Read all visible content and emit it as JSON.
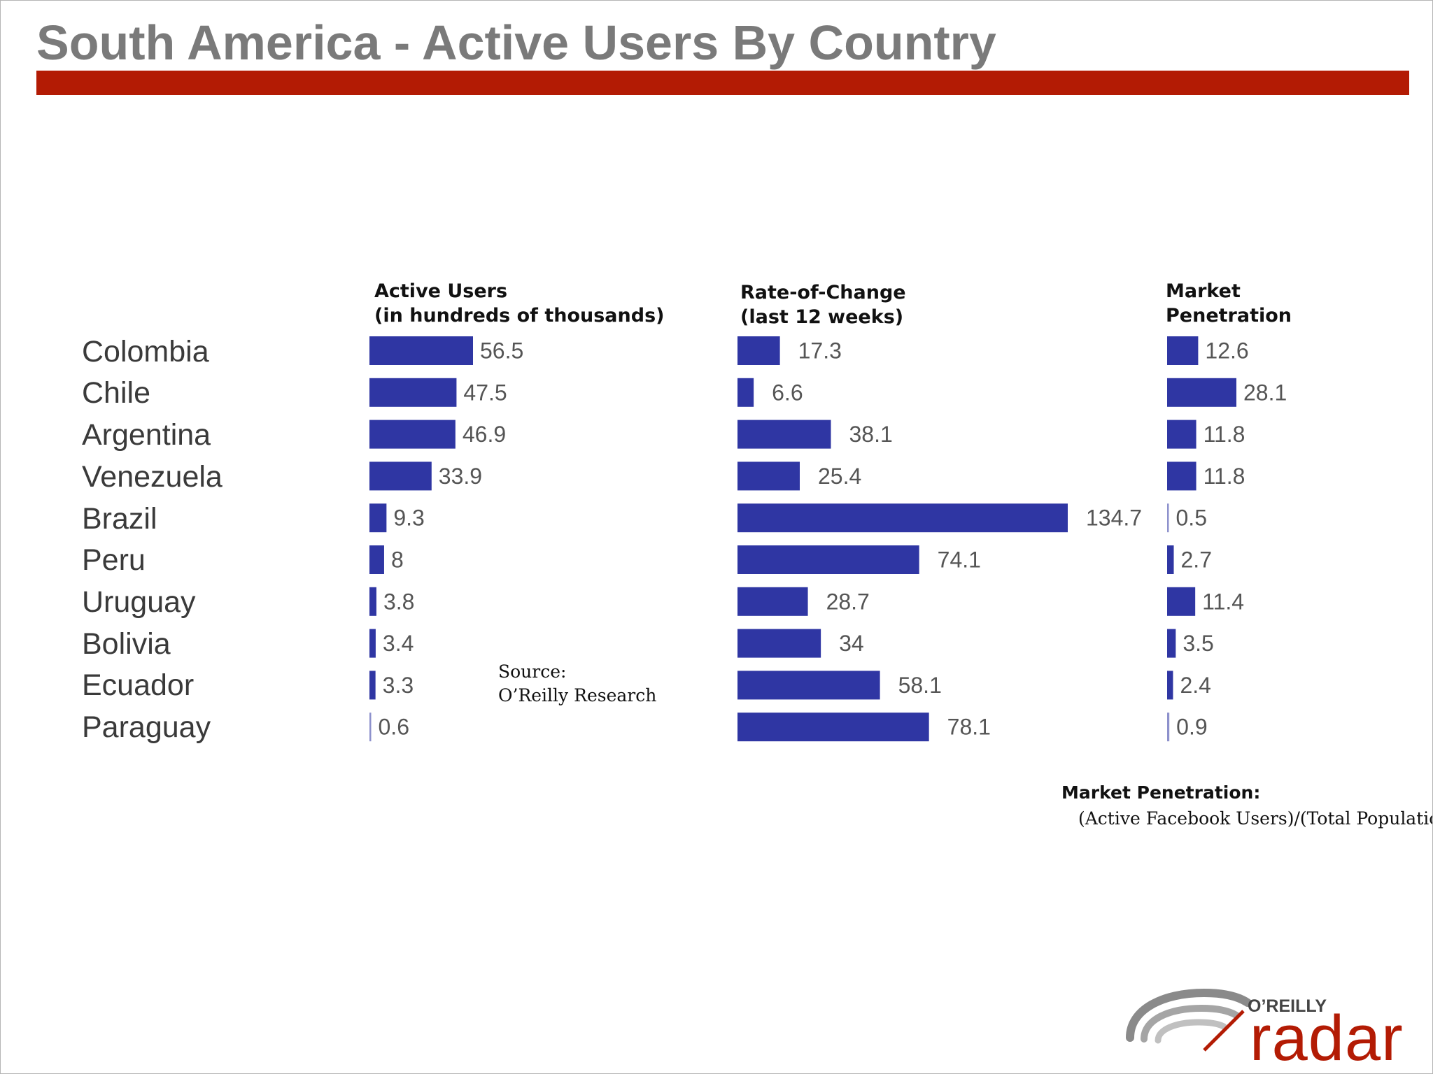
{
  "title": "South America - Active Users By Country",
  "colors": {
    "bar": "#2f36a3",
    "title_bar": "#b31b04",
    "title_text": "#7a7a7a"
  },
  "chart_data": {
    "type": "bar",
    "orientation": "horizontal",
    "categories": [
      "Colombia",
      "Chile",
      "Argentina",
      "Venezuela",
      "Brazil",
      "Peru",
      "Uruguay",
      "Bolivia",
      "Ecuador",
      "Paraguay"
    ],
    "series": [
      {
        "name": "Active Users (in hundreds of thousands)",
        "heading_line1": "Active Users",
        "heading_line2": "(in hundreds of thousands)",
        "values": [
          56.5,
          47.5,
          46.9,
          33.9,
          9.3,
          8,
          3.8,
          3.4,
          3.3,
          0.6
        ],
        "labels": [
          "56.5",
          "47.5",
          "46.9",
          "33.9",
          "9.3",
          "8",
          "3.8",
          "3.4",
          "3.3",
          "0.6"
        ]
      },
      {
        "name": "Rate-of-Change (last 12 weeks)",
        "heading_line1": "Rate-of-Change",
        "heading_line2": "(last 12 weeks)",
        "values": [
          17.3,
          6.6,
          38.1,
          25.4,
          134.7,
          74.1,
          28.7,
          34,
          58.1,
          78.1
        ],
        "labels": [
          "17.3",
          "6.6",
          "38.1",
          "25.4",
          "134.7",
          "74.1",
          "28.7",
          "34",
          "58.1",
          "78.1"
        ]
      },
      {
        "name": "Market Penetration",
        "heading_line1": "Market",
        "heading_line2": "Penetration",
        "values": [
          12.6,
          28.1,
          11.8,
          11.8,
          0.5,
          2.7,
          11.4,
          3.5,
          2.4,
          0.9
        ],
        "labels": [
          "12.6",
          "28.1",
          "11.8",
          "11.8",
          "0.5",
          "2.7",
          "11.4",
          "3.5",
          "2.4",
          "0.9"
        ]
      }
    ]
  },
  "source": {
    "line1": "Source:",
    "line2": "O’Reilly Research"
  },
  "note": {
    "heading": "Market Penetration:",
    "body": "(Active Facebook Users)/(Total Population)"
  },
  "logo": {
    "small": "O’REILLY",
    "big": "radar"
  }
}
